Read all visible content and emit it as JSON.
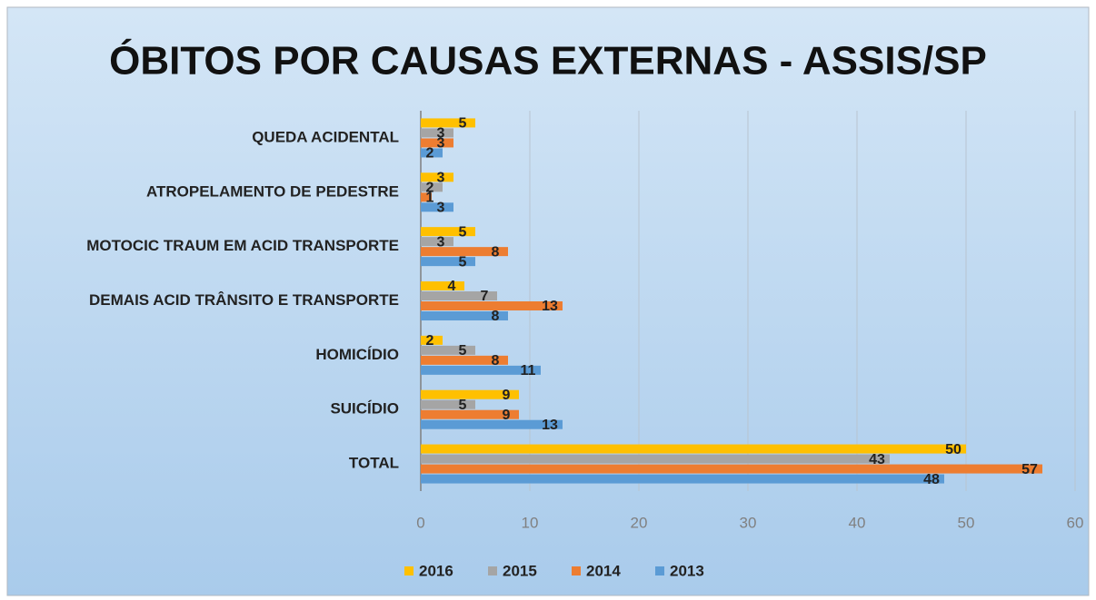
{
  "chart_data": {
    "type": "bar",
    "orientation": "horizontal",
    "title": "ÓBITOS POR CAUSAS EXTERNAS - ASSIS/SP",
    "categories": [
      "QUEDA ACIDENTAL",
      "ATROPELAMENTO DE PEDESTRE",
      "MOTOCIC TRAUM EM ACID TRANSPORTE",
      "DEMAIS ACID TRÂNSITO E TRANSPORTE",
      "HOMICÍDIO",
      "SUICÍDIO",
      "TOTAL"
    ],
    "series": [
      {
        "name": "2016",
        "color": "#ffc000",
        "values": [
          5,
          3,
          5,
          4,
          2,
          9,
          50
        ]
      },
      {
        "name": "2015",
        "color": "#a5a5a5",
        "values": [
          3,
          2,
          3,
          7,
          5,
          5,
          43
        ]
      },
      {
        "name": "2014",
        "color": "#ed7d31",
        "values": [
          3,
          1,
          8,
          13,
          8,
          9,
          57
        ]
      },
      {
        "name": "2013",
        "color": "#5b9bd5",
        "values": [
          2,
          3,
          5,
          8,
          11,
          13,
          48
        ]
      }
    ],
    "xlim": [
      0,
      60
    ],
    "xticks": [
      0,
      10,
      20,
      30,
      40,
      50,
      60
    ],
    "grid": true,
    "legend": "bottom"
  }
}
